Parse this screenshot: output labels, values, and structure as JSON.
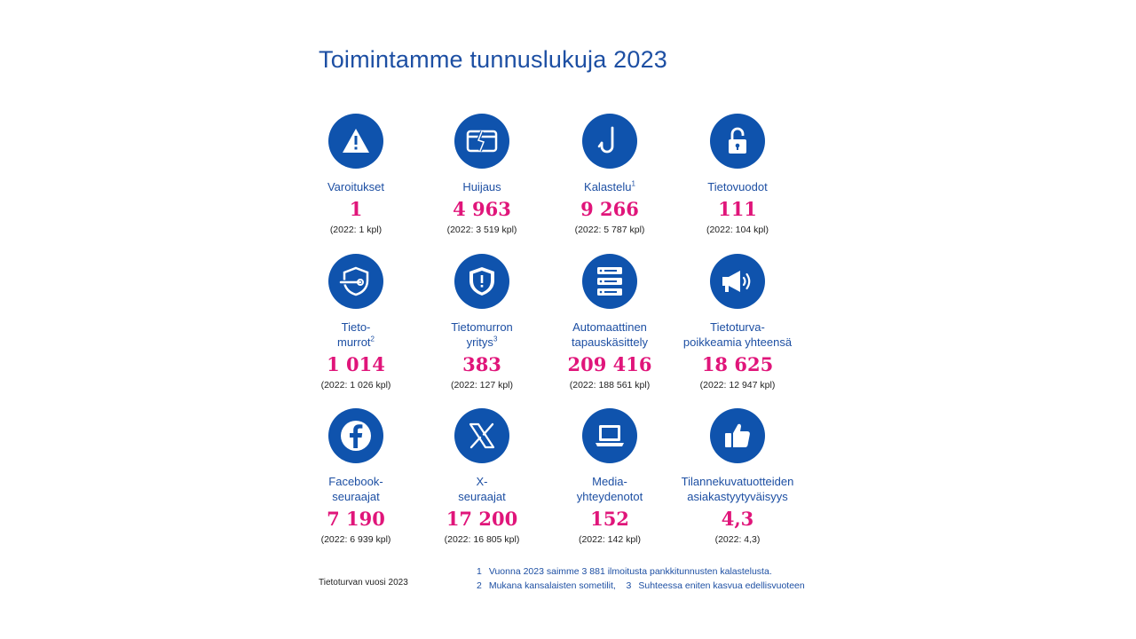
{
  "title": "Toimintamme tunnuslukuja 2023",
  "colors": {
    "accent_blue": "#0f53ad",
    "text_blue": "#1d4fa3",
    "value_pink": "#e0157a"
  },
  "stats": [
    {
      "icon": "warning-icon",
      "label": "Varoitukset",
      "sup": "",
      "value": "1",
      "prev": "(2022: 1 kpl)"
    },
    {
      "icon": "broken-card-icon",
      "label": "Huijaus",
      "sup": "",
      "value": "4 963",
      "prev": "(2022: 3 519 kpl)"
    },
    {
      "icon": "fishing-hook-icon",
      "label": "Kalastelu",
      "sup": "1",
      "value": "9 266",
      "prev": "(2022: 5 787 kpl)"
    },
    {
      "icon": "unlocked-padlock-icon",
      "label": "Tietovuodot",
      "sup": "",
      "value": "111",
      "prev": "(2022: 104 kpl)"
    },
    {
      "icon": "shield-pierced-icon",
      "label_l1": "Tieto-",
      "label_l2": "murrot",
      "sup": "2",
      "value": "1 014",
      "prev": "(2022: 1 026 kpl)"
    },
    {
      "icon": "shield-warning-icon",
      "label_l1": "Tietomurron",
      "label_l2": "yritys",
      "sup": "3",
      "value": "383",
      "prev": "(2022: 127 kpl)"
    },
    {
      "icon": "server-rack-icon",
      "label_l1": "Automaattinen",
      "label_l2": "tapauskäsittely",
      "sup": "",
      "value": "209 416",
      "prev": "(2022: 188 561 kpl)"
    },
    {
      "icon": "megaphone-icon",
      "label_l1": "Tietoturva-",
      "label_l2": "poikkeamia yhteensä",
      "sup": "",
      "value": "18 625",
      "prev": "(2022: 12 947 kpl)"
    },
    {
      "icon": "facebook-icon",
      "label_l1": "Facebook-",
      "label_l2": "seuraajat",
      "sup": "",
      "value": "7 190",
      "prev": "(2022: 6 939 kpl)"
    },
    {
      "icon": "x-logo-icon",
      "label_l1": "X-",
      "label_l2": "seuraajat",
      "sup": "",
      "value": "17 200",
      "prev": "(2022: 16 805 kpl)"
    },
    {
      "icon": "laptop-icon",
      "label_l1": "Media-",
      "label_l2": "yhteydenotot",
      "sup": "",
      "value": "152",
      "prev": "(2022: 142 kpl)"
    },
    {
      "icon": "thumbs-up-icon",
      "label_l1": "Tilannekuvatuotteiden",
      "label_l2": "asiakastyytyväisyys",
      "sup": "",
      "value": "4,3",
      "prev": "(2022: 4,3)"
    }
  ],
  "source": "Tietoturvan vuosi 2023",
  "footnotes": {
    "n1": "1",
    "t1": "Vuonna 2023 saimme 3 881 ilmoitusta pankkitunnusten kalastelusta.",
    "n2": "2",
    "t2": "Mukana kansalaisten sometilit,",
    "n3": "3",
    "t3": "Suhteessa eniten kasvua edellisvuoteen"
  }
}
